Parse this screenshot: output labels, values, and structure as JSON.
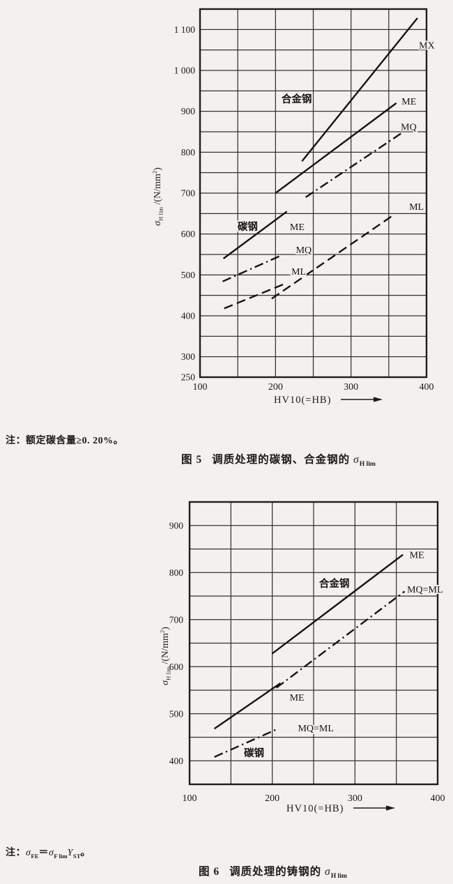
{
  "page_bg": "#f2f1ed",
  "ink": "#1b1a17",
  "x_axis_title": "HV10(=HB)",
  "y_axis_title": {
    "sigma": "σ",
    "sub": "H lim",
    "mid": " /(N/mm",
    "sup": "2",
    "end": ")"
  },
  "note1": "注：额定碳含量≥0. 20%。",
  "caption1": {
    "fig": "图 5",
    "body": "调质处理的碳钢、合金钢的 ",
    "sigma": "σ",
    "sigma_sub": "H lim"
  },
  "note2": {
    "prefix": "注：",
    "sigma1": "σ",
    "sub1": "FE",
    "eq": "＝",
    "sigma2": "σ",
    "sub2": "F lim",
    "yvar": "Y",
    "sub3": "ST",
    "end": "。"
  },
  "caption2": {
    "fig": "图 6",
    "body": "调质处理的铸钢的 ",
    "sigma": "σ",
    "sigma_sub": "H lim"
  },
  "chart_data": [
    {
      "id": "fig5",
      "type": "line",
      "title": "图 5 调质处理的碳钢、合金钢的 σH lim",
      "xlabel": "HV10(=HB)",
      "ylabel": "σH lim /(N/mm2)",
      "xlim": [
        100,
        400
      ],
      "ylim": [
        250,
        1150
      ],
      "grid": true,
      "grid_step": 50,
      "x_ticks": [
        {
          "v": 100,
          "label": "100"
        },
        {
          "v": 200,
          "label": "200"
        },
        {
          "v": 300,
          "label": "300"
        },
        {
          "v": 400,
          "label": "400"
        }
      ],
      "y_ticks": [
        {
          "v": 1100,
          "label": "1 100"
        },
        {
          "v": 1000,
          "label": "1 000"
        },
        {
          "v": 900,
          "label": "900"
        },
        {
          "v": 800,
          "label": "800"
        },
        {
          "v": 700,
          "label": "700"
        },
        {
          "v": 600,
          "label": "600"
        },
        {
          "v": 500,
          "label": "500"
        },
        {
          "v": 400,
          "label": "400"
        },
        {
          "v": 300,
          "label": "300"
        },
        {
          "v": 250,
          "label": "250"
        }
      ],
      "series": [
        {
          "id": "alloy-MX",
          "group": "合金钢",
          "grade": "MX",
          "style": "solid",
          "points": [
            [
              235,
              778
            ],
            [
              388,
              1128
            ]
          ]
        },
        {
          "id": "alloy-ME",
          "group": "合金钢",
          "grade": "ME",
          "style": "solid",
          "points": [
            [
              200,
              700
            ],
            [
              360,
              920
            ]
          ]
        },
        {
          "id": "alloy-MQ",
          "group": "合金钢",
          "grade": "MQ",
          "style": "dashdot",
          "points": [
            [
              240,
              690
            ],
            [
              368,
              848
            ]
          ]
        },
        {
          "id": "alloy-ML",
          "group": "合金钢",
          "grade": "ML",
          "style": "dashed",
          "points": [
            [
              195,
              442
            ],
            [
              355,
              645
            ]
          ]
        },
        {
          "id": "carbon-ME",
          "group": "碳钢",
          "grade": "ME",
          "style": "solid",
          "points": [
            [
              131,
              540
            ],
            [
              215,
              655
            ]
          ]
        },
        {
          "id": "carbon-MQ",
          "group": "碳钢",
          "grade": "MQ",
          "style": "dashdot",
          "points": [
            [
              130,
              484
            ],
            [
              208,
              548
            ]
          ]
        },
        {
          "id": "carbon-ML",
          "group": "碳钢",
          "grade": "ML",
          "style": "dashed",
          "points": [
            [
              132,
              418
            ],
            [
              212,
              478
            ]
          ]
        }
      ],
      "annotations": [
        {
          "text": "合金钢",
          "x": 228,
          "y": 930,
          "anchor": "middle",
          "cjk": true
        },
        {
          "text": "MX",
          "x": 390,
          "y": 1062,
          "anchor": "start"
        },
        {
          "text": "ME",
          "x": 367,
          "y": 925,
          "anchor": "start"
        },
        {
          "text": "MQ",
          "x": 366,
          "y": 863,
          "anchor": "start"
        },
        {
          "text": "ML",
          "x": 377,
          "y": 668,
          "anchor": "start"
        },
        {
          "text": "碳钢",
          "x": 163,
          "y": 618,
          "anchor": "middle",
          "cjk": true
        },
        {
          "text": "ME",
          "x": 219,
          "y": 618,
          "anchor": "start"
        },
        {
          "text": "MQ",
          "x": 227,
          "y": 562,
          "anchor": "start"
        },
        {
          "text": "ML",
          "x": 221,
          "y": 509,
          "anchor": "start"
        }
      ]
    },
    {
      "id": "fig6",
      "type": "line",
      "title": "图 6 调质处理的铸钢的 σH lim",
      "xlabel": "HV10(=HB)",
      "ylabel": "σH lim /(N/mm2)",
      "xlim": [
        100,
        400
      ],
      "ylim": [
        350,
        950
      ],
      "grid": true,
      "grid_step": 50,
      "x_ticks": [
        {
          "v": 100,
          "label": "100"
        },
        {
          "v": 200,
          "label": "200"
        },
        {
          "v": 300,
          "label": "300"
        },
        {
          "v": 400,
          "label": "400"
        }
      ],
      "y_ticks": [
        {
          "v": 900,
          "label": "900"
        },
        {
          "v": 800,
          "label": "800"
        },
        {
          "v": 700,
          "label": "700"
        },
        {
          "v": 600,
          "label": "600"
        },
        {
          "v": 500,
          "label": "500"
        },
        {
          "v": 400,
          "label": "400"
        }
      ],
      "series": [
        {
          "id": "alloy-ME",
          "group": "合金钢",
          "grade": "ME",
          "style": "solid",
          "points": [
            [
              200,
              628
            ],
            [
              358,
              838
            ]
          ]
        },
        {
          "id": "alloy-MQ-ML",
          "group": "合金钢",
          "grade": "MQ=ML",
          "style": "dashdot",
          "points": [
            [
              205,
              555
            ],
            [
              360,
              760
            ]
          ]
        },
        {
          "id": "carbon-ME",
          "group": "碳钢",
          "grade": "ME",
          "style": "solid",
          "points": [
            [
              130,
              468
            ],
            [
              210,
              565
            ]
          ]
        },
        {
          "id": "carbon-MQ-ML",
          "group": "碳钢",
          "grade": "MQ=ML",
          "style": "dashdot",
          "points": [
            [
              130,
              408
            ],
            [
              207,
              468
            ]
          ]
        }
      ],
      "annotations": [
        {
          "text": "合金钢",
          "x": 275,
          "y": 777,
          "anchor": "middle",
          "cjk": true
        },
        {
          "text": "ME",
          "x": 366,
          "y": 838,
          "anchor": "start"
        },
        {
          "text": "MQ=ML",
          "x": 363,
          "y": 765,
          "anchor": "start"
        },
        {
          "text": "ME",
          "x": 221,
          "y": 535,
          "anchor": "start"
        },
        {
          "text": "MQ=ML",
          "x": 231,
          "y": 470,
          "anchor": "start"
        },
        {
          "text": "碳钢",
          "x": 178,
          "y": 417,
          "anchor": "middle",
          "cjk": true
        }
      ]
    }
  ]
}
